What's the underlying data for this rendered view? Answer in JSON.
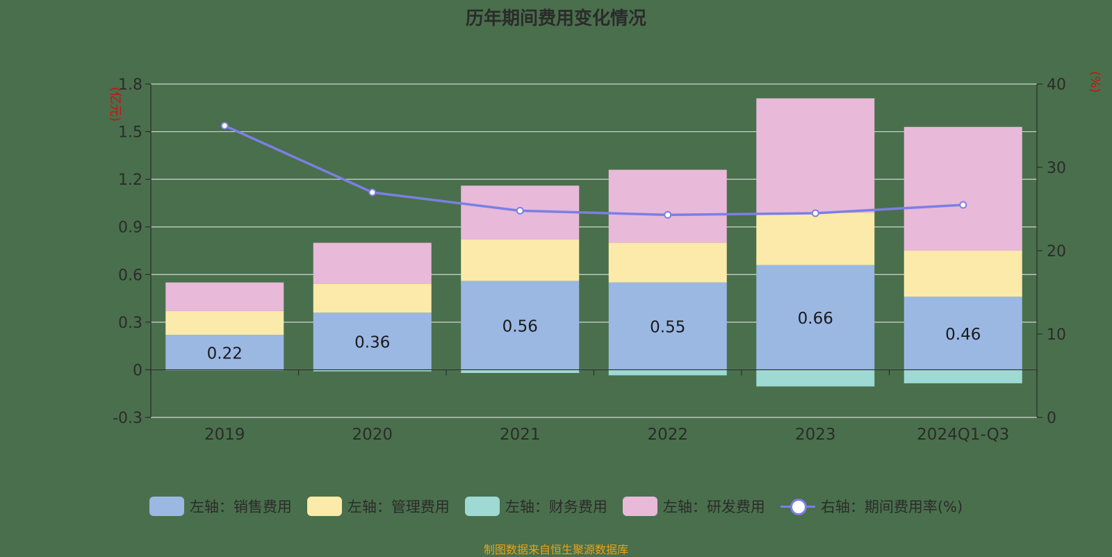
{
  "title": "历年期间费用变化情况",
  "source_note": "制图数据来自恒生聚源数据库",
  "colors": {
    "background": "#4a6f4c",
    "sales": "#9bb8e3",
    "management": "#fbeaa9",
    "finance": "#9ed9d3",
    "rnd": "#e8b9d9",
    "rate_line": "#7b7fe6",
    "grid": "#cfd8cf",
    "axis_text": "#2b2b2b",
    "unit_text": "#cc1111"
  },
  "chart_data": {
    "type": "bar",
    "stacked": true,
    "categories": [
      "2019",
      "2020",
      "2021",
      "2022",
      "2023",
      "2024Q1-Q3"
    ],
    "left_axis": {
      "unit": "(亿元)",
      "ylim": [
        -0.3,
        1.8
      ],
      "ticks": [
        "1.8",
        "1.5",
        "1.2",
        "0.9",
        "0.6",
        "0.3",
        "0",
        "-0.3"
      ]
    },
    "right_axis": {
      "unit": "(%)",
      "ylim": [
        0,
        40
      ],
      "ticks": [
        "40",
        "30",
        "20",
        "10",
        "0"
      ]
    },
    "grid": true,
    "legend_position": "bottom",
    "series": [
      {
        "name": "左轴：销售费用",
        "axis": "left",
        "kind": "bar",
        "values": [
          0.22,
          0.36,
          0.56,
          0.55,
          0.66,
          0.46
        ]
      },
      {
        "name": "左轴：管理费用",
        "axis": "left",
        "kind": "bar",
        "values": [
          0.15,
          0.18,
          0.26,
          0.25,
          0.33,
          0.29
        ]
      },
      {
        "name": "左轴：财务费用",
        "axis": "left",
        "kind": "bar",
        "values": [
          -0.002,
          -0.01,
          -0.02,
          -0.035,
          -0.105,
          -0.085
        ]
      },
      {
        "name": "左轴：研发费用",
        "axis": "left",
        "kind": "bar",
        "values": [
          0.18,
          0.26,
          0.34,
          0.46,
          0.72,
          0.78
        ]
      },
      {
        "name": "右轴：期间费用率(%)",
        "axis": "right",
        "kind": "line",
        "values": [
          35.0,
          27.0,
          24.8,
          24.3,
          24.5,
          25.5
        ]
      }
    ],
    "data_labels": [
      "0.22",
      "0.36",
      "0.56",
      "0.55",
      "0.66",
      "0.46"
    ]
  }
}
